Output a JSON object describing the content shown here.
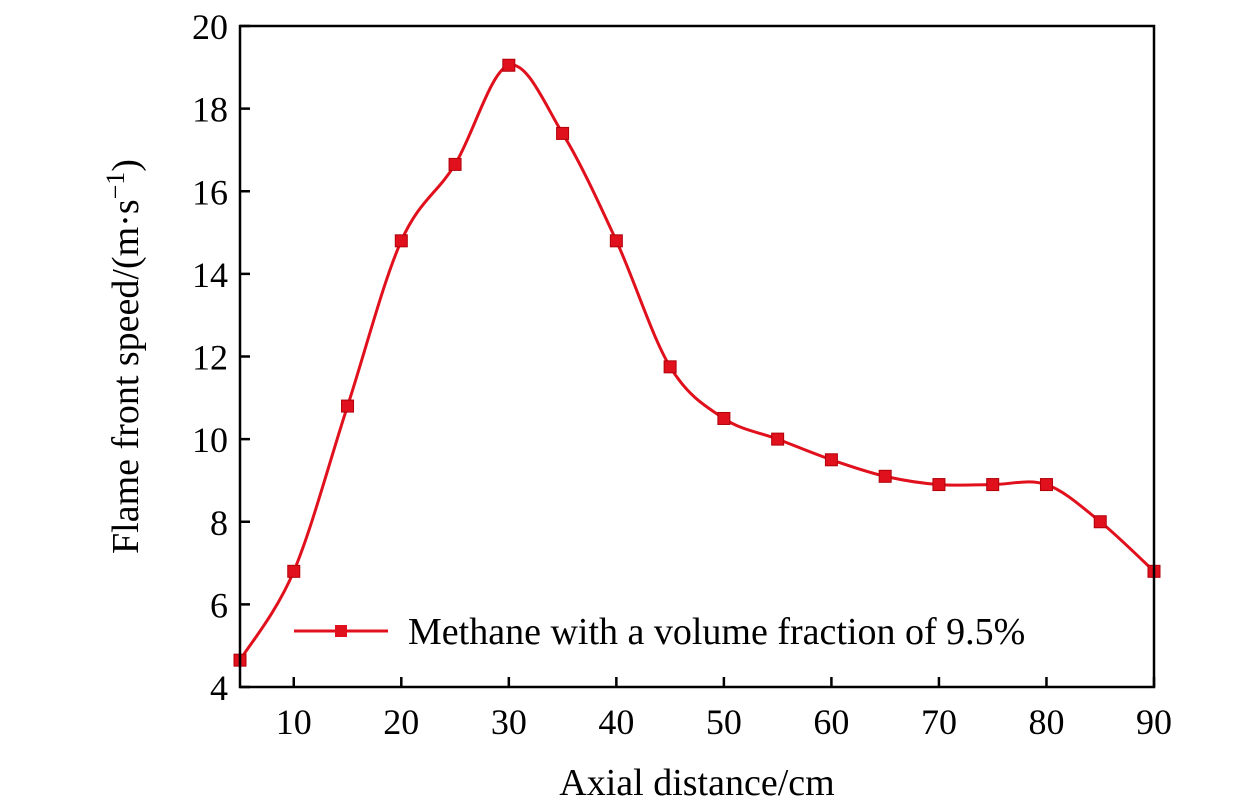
{
  "chart_data": {
    "type": "line",
    "title": "",
    "xlabel": "Axial distance/cm",
    "ylabel": "Flame front speed/(m·s",
    "ylabel_superscript": "−1",
    "ylabel_suffix": ")",
    "xlim": [
      5,
      90
    ],
    "ylim": [
      4,
      20
    ],
    "x_ticks": [
      10,
      20,
      30,
      40,
      50,
      60,
      70,
      80,
      90
    ],
    "y_ticks": [
      4,
      6,
      8,
      10,
      12,
      14,
      16,
      18,
      20
    ],
    "grid": false,
    "legend_position": "lower-center",
    "smooth": true,
    "marker": "square",
    "series": [
      {
        "name": "Methane with a volume fraction of 9.5%",
        "color": "#e0101c",
        "x": [
          5,
          10,
          15,
          20,
          25,
          30,
          35,
          40,
          45,
          50,
          55,
          60,
          65,
          70,
          75,
          80,
          85,
          90
        ],
        "y": [
          4.65,
          6.8,
          10.8,
          14.8,
          16.65,
          19.05,
          17.4,
          14.8,
          11.75,
          10.5,
          10.0,
          9.5,
          9.1,
          8.9,
          8.9,
          8.9,
          8.0,
          6.8
        ]
      }
    ]
  }
}
